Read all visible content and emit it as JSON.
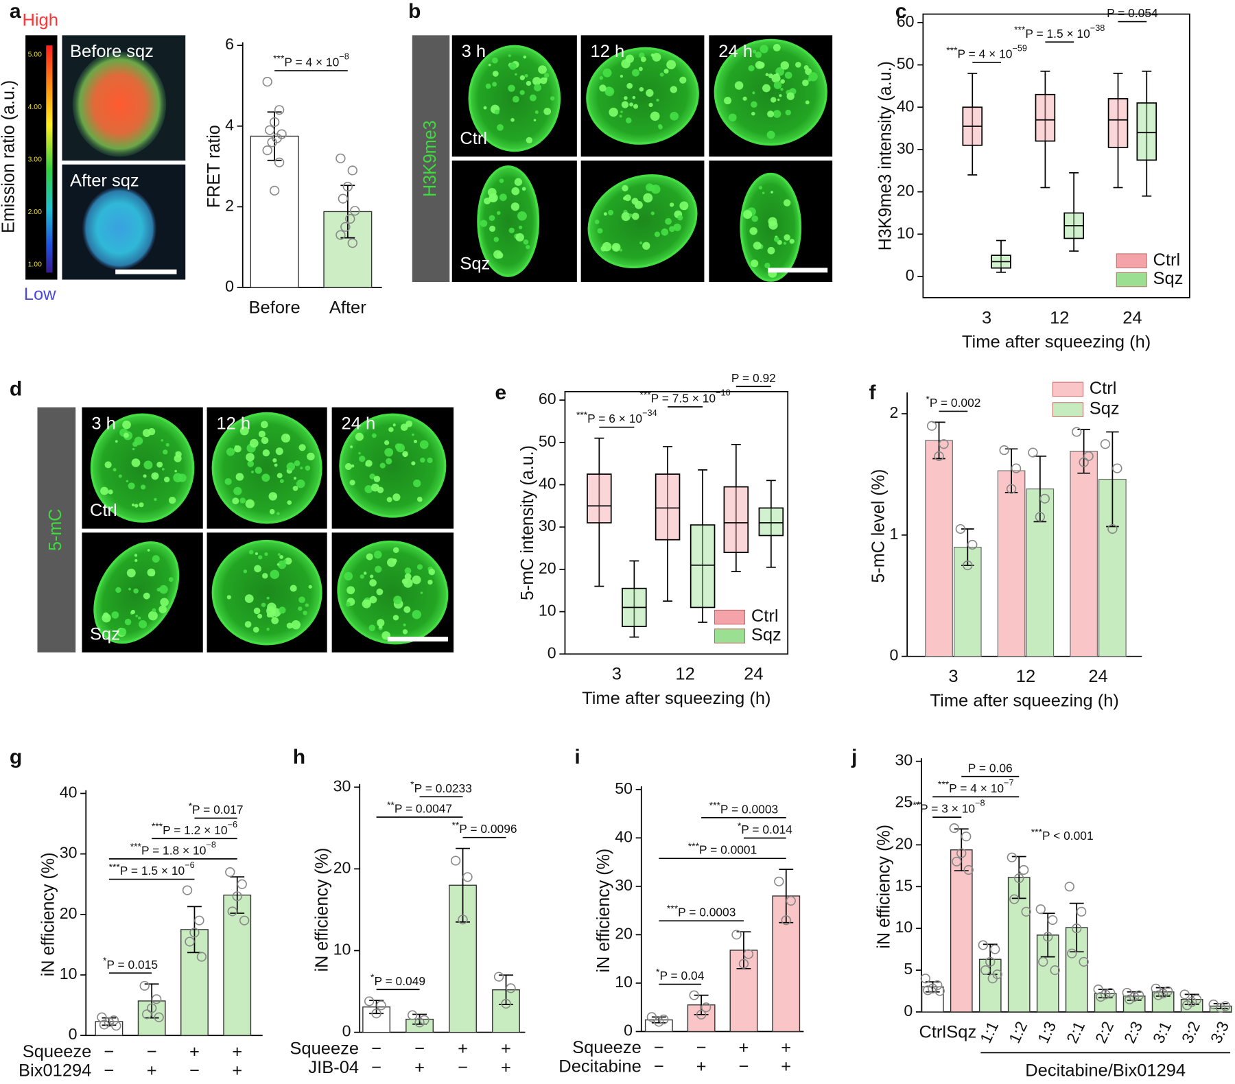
{
  "figures": {
    "a": {
      "panel": "a",
      "high": "High",
      "low": "Low",
      "colorbar_label": "Emission ratio (a.u.)",
      "colorbar_ticks": [
        "5.00",
        "4.00",
        "3.00",
        "2.00",
        "1.00"
      ],
      "images": [
        "Before sqz",
        "After sqz"
      ]
    },
    "b": {
      "panel": "b",
      "stain": "H3K9me3",
      "columns": [
        "3 h",
        "12 h",
        "24 h"
      ],
      "rows": [
        "Ctrl",
        "Sqz"
      ]
    },
    "d": {
      "panel": "d",
      "stain": "5-mC",
      "columns": [
        "3 h",
        "12 h",
        "24 h"
      ],
      "rows": [
        "Ctrl",
        "Sqz"
      ]
    }
  },
  "chart_data": [
    {
      "type": "bar",
      "categories": [
        "Before",
        "After"
      ],
      "values": [
        3.75,
        1.88
      ],
      "errors": [
        0.6,
        0.65
      ],
      "colors": [
        "#ffffff",
        "#cdeec5"
      ],
      "points": [
        [
          5.1,
          4.4,
          4.1,
          3.9,
          3.8,
          3.7,
          3.6,
          3.4,
          3.1,
          2.4
        ],
        [
          3.2,
          2.9,
          2.5,
          2.2,
          1.9,
          1.7,
          1.5,
          1.3,
          1.1
        ]
      ],
      "ylabel": "FRET ratio",
      "ylim": [
        0,
        6
      ],
      "yticks": [
        0,
        2,
        4,
        6
      ],
      "annotations": [
        {
          "from": 0,
          "to": 1,
          "stars": "***",
          "text": "P = 4 × 10",
          "sup": "−8"
        }
      ]
    },
    {
      "type": "box",
      "panel": "c",
      "categories": [
        "3",
        "12",
        "24"
      ],
      "series": [
        {
          "name": "Ctrl",
          "color": "#f4a3a8",
          "stats": [
            [
              24,
              31,
              35.5,
              40,
              48
            ],
            [
              21,
              32,
              37,
              43,
              48.5
            ],
            [
              21,
              30.5,
              37,
              42,
              48
            ]
          ]
        },
        {
          "name": "Sqz",
          "color": "#9be092",
          "stats": [
            [
              1,
              2,
              3.5,
              5,
              8.5
            ],
            [
              6,
              9,
              12,
              15,
              24.5
            ],
            [
              19,
              27.5,
              34,
              41,
              48.5
            ]
          ]
        }
      ],
      "xlabel": "Time after squeezing (h)",
      "ylabel": "H3K9me3 intensity (a.u.)",
      "ylim": [
        -5,
        62
      ],
      "yticks": [
        0,
        10,
        20,
        30,
        40,
        50,
        60
      ],
      "legend": "bottom-right",
      "annotations": [
        {
          "category": 0,
          "stars": "***",
          "text": "P = 4 × 10",
          "sup": "−59"
        },
        {
          "category": 1,
          "stars": "***",
          "text": "P = 1.5 × 10",
          "sup": "−38"
        },
        {
          "category": 2,
          "text": "P = 0.054"
        }
      ]
    },
    {
      "type": "box",
      "panel": "e",
      "categories": [
        "3",
        "12",
        "24"
      ],
      "series": [
        {
          "name": "Ctrl",
          "color": "#f4a3a8",
          "stats": [
            [
              16,
              31,
              35,
              42.5,
              51
            ],
            [
              12.5,
              27,
              34.5,
              42.5,
              49
            ],
            [
              19.5,
              24,
              31,
              39.5,
              49.5
            ]
          ]
        },
        {
          "name": "Sqz",
          "color": "#9be092",
          "stats": [
            [
              4,
              6.5,
              11,
              15.5,
              22
            ],
            [
              7.5,
              11,
              21,
              30.5,
              43.5
            ],
            [
              20.5,
              28,
              31,
              34.5,
              41
            ]
          ]
        }
      ],
      "xlabel": "Time after squeezing (h)",
      "ylabel": "5-mC intensity (a.u.)",
      "ylim": [
        0,
        62
      ],
      "yticks": [
        0,
        10,
        20,
        30,
        40,
        50,
        60
      ],
      "legend": "bottom-right",
      "annotations": [
        {
          "category": 0,
          "stars": "***",
          "text": "P = 6 × 10",
          "sup": "−34"
        },
        {
          "category": 1,
          "stars": "***",
          "text": "P = 7.5 × 10",
          "sup": "−10"
        },
        {
          "category": 2,
          "text": "P = 0.92"
        }
      ]
    },
    {
      "type": "grouped_bar",
      "panel": "f",
      "categories": [
        "3",
        "12",
        "24"
      ],
      "series": [
        {
          "name": "Ctrl",
          "color": "#f9c5c7",
          "values": [
            1.78,
            1.53,
            1.69
          ],
          "errors": [
            0.15,
            0.18,
            0.18
          ],
          "points": [
            [
              1.9,
              1.75,
              1.65
            ],
            [
              1.7,
              1.55,
              1.38
            ],
            [
              1.85,
              1.65,
              1.6
            ]
          ]
        },
        {
          "name": "Sqz",
          "color": "#c5ebbf",
          "values": [
            0.9,
            1.38,
            1.46
          ],
          "errors": [
            0.15,
            0.27,
            0.39
          ],
          "points": [
            [
              1.05,
              0.92,
              0.75
            ],
            [
              1.68,
              1.3,
              1.15
            ],
            [
              1.75,
              1.55,
              1.05
            ]
          ]
        }
      ],
      "xlabel": "Time after squeezing (h)",
      "ylabel": "5-mC level (%)",
      "ylim": [
        0,
        2.15
      ],
      "yticks": [
        0,
        1,
        2
      ],
      "legend": "top-right",
      "annotations": [
        {
          "category": 0,
          "stars": "*",
          "text": "P = 0.002"
        }
      ]
    },
    {
      "type": "bar",
      "panel": "g",
      "values": [
        2.3,
        5.7,
        17.5,
        23.2
      ],
      "errors": [
        0.6,
        2.8,
        3.8,
        3.0
      ],
      "colors": [
        "#ffffff",
        "#c8ecc0",
        "#c8ecc0",
        "#c8ecc0"
      ],
      "points": [
        [
          3,
          2.5,
          2.2,
          1.8,
          1.6
        ],
        [
          8.2,
          6,
          4.5,
          3.5,
          3
        ],
        [
          24,
          19,
          17,
          15.5,
          13
        ],
        [
          27,
          25,
          23,
          20.5,
          19
        ]
      ],
      "conditions": [
        {
          "name": "Squeeze",
          "signs": [
            "−",
            "−",
            "+",
            "+"
          ]
        },
        {
          "name": "Bix01294",
          "signs": [
            "−",
            "+",
            "−",
            "+"
          ]
        }
      ],
      "ylabel": "iN efficiency (%)",
      "ylim": [
        0,
        40
      ],
      "yticks": [
        0,
        10,
        20,
        30,
        40
      ],
      "annotations": [
        {
          "from": 0,
          "to": 1,
          "stars": "*",
          "text": "P = 0.015"
        },
        {
          "from": 0,
          "to": 2,
          "stars": "***",
          "text": "P = 1.5 × 10",
          "sup": "−6"
        },
        {
          "from": 0,
          "to": 3,
          "stars": "***",
          "text": "P = 1.8 × 10",
          "sup": "−8"
        },
        {
          "from": 1,
          "to": 3,
          "stars": "***",
          "text": "P = 1.2 × 10",
          "sup": "−6"
        },
        {
          "from": 2,
          "to": 3,
          "stars": "*",
          "text": "P = 0.017"
        }
      ]
    },
    {
      "type": "bar",
      "panel": "h",
      "values": [
        3.1,
        1.6,
        18,
        5.2
      ],
      "errors": [
        0.8,
        0.6,
        4.5,
        1.8
      ],
      "colors": [
        "#ffffff",
        "#c8ecc0",
        "#c8ecc0",
        "#c8ecc0"
      ],
      "points": [
        [
          3.8,
          3.3,
          2.3
        ],
        [
          2.1,
          1.5,
          1.2
        ],
        [
          21,
          19,
          13.8
        ],
        [
          6.8,
          5.4,
          3.5
        ]
      ],
      "conditions": [
        {
          "name": "Squeeze",
          "signs": [
            "−",
            "−",
            "+",
            "+"
          ]
        },
        {
          "name": "JIB-04",
          "signs": [
            "−",
            "+",
            "−",
            "+"
          ]
        }
      ],
      "ylabel": "iN efficiency (%)",
      "ylim": [
        0,
        30
      ],
      "yticks": [
        0,
        10,
        20,
        30
      ],
      "annotations": [
        {
          "from": 0,
          "to": 1,
          "stars": "*",
          "text": "P = 0.049"
        },
        {
          "from": 2,
          "to": 3,
          "stars": "**",
          "text": "P = 0.0096"
        },
        {
          "from": 0,
          "to": 2,
          "stars": "**",
          "text": "P = 0.0047"
        },
        {
          "from": 1,
          "to": 2,
          "stars": "*",
          "text": "P = 0.0233"
        }
      ]
    },
    {
      "type": "bar",
      "panel": "i",
      "values": [
        2.4,
        5.5,
        16.8,
        28
      ],
      "errors": [
        0.6,
        2,
        3.8,
        5.5
      ],
      "colors": [
        "#ffffff",
        "#f9c5c7",
        "#f9c5c7",
        "#f9c5c7"
      ],
      "points": [
        [
          3,
          2.5,
          2
        ],
        [
          7.5,
          5,
          3.5
        ],
        [
          20,
          16,
          14
        ],
        [
          31,
          27,
          23
        ]
      ],
      "conditions": [
        {
          "name": "Squeeze",
          "signs": [
            "−",
            "−",
            "+",
            "+"
          ]
        },
        {
          "name": "Decitabine",
          "signs": [
            "−",
            "+",
            "−",
            "+"
          ]
        }
      ],
      "ylabel": "iN efficiency (%)",
      "ylim": [
        0,
        50
      ],
      "yticks": [
        0,
        10,
        20,
        30,
        40,
        50
      ],
      "annotations": [
        {
          "from": 0,
          "to": 1,
          "stars": "*",
          "text": "P = 0.04"
        },
        {
          "from": 0,
          "to": 2,
          "stars": "***",
          "text": "P = 0.0003"
        },
        {
          "from": 0,
          "to": 3,
          "stars": "***",
          "text": "P = 0.0001"
        },
        {
          "from": 2,
          "to": 3,
          "stars": "*",
          "text": "P = 0.014"
        },
        {
          "from": 1,
          "to": 3,
          "stars": "***",
          "text": "P = 0.0003"
        }
      ]
    },
    {
      "type": "bar",
      "panel": "j",
      "categories": [
        "Ctrl",
        "Sqz",
        "1:1",
        "1:2",
        "1:3",
        "2:1",
        "2:2",
        "2:3",
        "3:1",
        "3:2",
        "3:3"
      ],
      "values": [
        3,
        19.4,
        6.3,
        16.1,
        9.2,
        10.1,
        2.2,
        1.9,
        2.4,
        1.5,
        0.7
      ],
      "errors": [
        0.6,
        2.5,
        1.8,
        2.5,
        2.6,
        2.9,
        0.5,
        0.5,
        0.5,
        0.6,
        0.3
      ],
      "colors": [
        "#ffffff",
        "#f9c5c7",
        "#c8ecc0",
        "#c8ecc0",
        "#c8ecc0",
        "#c8ecc0",
        "#c8ecc0",
        "#c8ecc0",
        "#c8ecc0",
        "#c8ecc0",
        "#c8ecc0"
      ],
      "points": [
        [
          4,
          3.2,
          2.8,
          2.6,
          2.5
        ],
        [
          22,
          21,
          19,
          18,
          17
        ],
        [
          8,
          7.5,
          6,
          5,
          4.5,
          4
        ],
        [
          18.5,
          17,
          16,
          13.5,
          12
        ],
        [
          12.3,
          11,
          9,
          6,
          5
        ],
        [
          15,
          12,
          10,
          7,
          6
        ],
        [
          2.7,
          2.3,
          2.1,
          1.8
        ],
        [
          2.3,
          2,
          1.8,
          1.5
        ],
        [
          2.8,
          2.5,
          2.2,
          2
        ],
        [
          2.1,
          1.5,
          1.2,
          0.8
        ],
        [
          0.9,
          0.7,
          0.5
        ]
      ],
      "group": {
        "label": "Decitabine/Bix01294",
        "from": 2,
        "to": 10
      },
      "note": {
        "stars": "***",
        "text": "P < 0.001"
      },
      "ylabel": "iN efficiency (%)",
      "ylim": [
        0,
        30
      ],
      "yticks": [
        0,
        5,
        10,
        15,
        20,
        25,
        30
      ],
      "annotations": [
        {
          "from": 0,
          "to": 1,
          "stars": "***",
          "text": "P = 3 × 10",
          "sup": "−8"
        },
        {
          "from": 0,
          "to": 3,
          "stars": "***",
          "text": "P = 4 × 10",
          "sup": "−7"
        },
        {
          "from": 1,
          "to": 3,
          "text": "P = 0.06"
        }
      ]
    }
  ]
}
